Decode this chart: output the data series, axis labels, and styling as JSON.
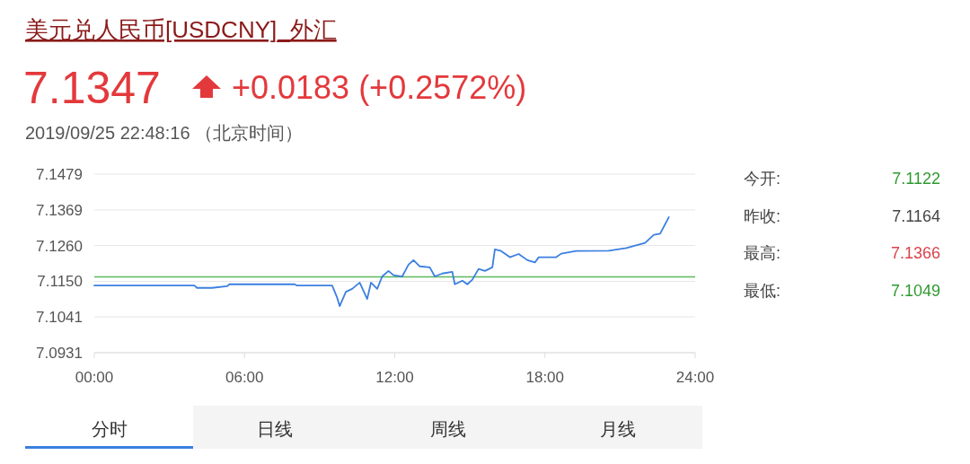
{
  "chart_data": {
    "type": "line",
    "title": "美元兑人民币[USDCNY]_外汇",
    "subtitle": "7.1347",
    "annotations": [
      "+0.0183 (+0.2572%)",
      "2019/09/25 22:48:16 （北京时间）",
      "今开:",
      "7.1122",
      "昨收:",
      "7.1164",
      "最高:",
      "7.1366",
      "最低:",
      "7.1049",
      "分时",
      "日线",
      "周线",
      "月线"
    ],
    "series": [
      {
        "color": "#3b7fe0",
        "x": [
          0,
          4.0,
          4.1,
          4.7,
          5.3,
          5.4,
          8.0,
          8.1,
          9.5,
          9.7,
          9.8,
          10.05,
          10.3,
          10.6,
          10.9,
          11.05,
          11.3,
          11.5,
          11.75,
          11.95,
          12.3,
          12.55,
          12.75,
          13.0,
          13.4,
          13.6,
          13.9,
          14.3,
          14.4,
          14.7,
          14.9,
          15.1,
          15.35,
          15.6,
          15.9,
          16.0,
          16.25,
          16.6,
          16.95,
          17.3,
          17.6,
          17.75,
          18.45,
          18.65,
          19.25,
          20.55,
          21.25,
          22.0,
          22.35,
          22.6,
          22.95
        ],
        "values": [
          7.1137,
          7.1137,
          7.113,
          7.113,
          7.1135,
          7.1141,
          7.1141,
          7.1137,
          7.1137,
          7.11,
          7.1074,
          7.1118,
          7.1127,
          7.1146,
          7.1096,
          7.1146,
          7.1127,
          7.1165,
          7.1182,
          7.1169,
          7.1165,
          7.1201,
          7.1215,
          7.1196,
          7.1193,
          7.1165,
          7.1174,
          7.1179,
          7.1141,
          7.1152,
          7.1141,
          7.1155,
          7.1188,
          7.1182,
          7.1193,
          7.1248,
          7.1243,
          7.1224,
          7.1234,
          7.1215,
          7.1208,
          7.1224,
          7.1224,
          7.1235,
          7.1243,
          7.1244,
          7.1252,
          7.1268,
          7.1293,
          7.1296,
          7.1347
        ]
      }
    ],
    "xlim": [
      0,
      24
    ],
    "xticks": [
      {
        "value": 0,
        "label": "00:00"
      },
      {
        "value": 6,
        "label": "06:00"
      },
      {
        "value": 12,
        "label": "12:00"
      },
      {
        "value": 18,
        "label": "18:00"
      },
      {
        "value": 24,
        "label": "24:00"
      }
    ],
    "ylim": [
      7.0931,
      7.1479
    ],
    "yticks": [
      7.0931,
      7.1041,
      {
        "value": 7.115,
        "label": "7.1150"
      },
      {
        "value": 7.126,
        "label": "7.1260"
      },
      7.1369,
      7.1479
    ],
    "ref_lines": [
      {
        "axis": "y",
        "value": 7.1164,
        "color": "#5cb85c"
      }
    ],
    "grid": "y",
    "marker": "none",
    "line_style": "solid"
  }
}
